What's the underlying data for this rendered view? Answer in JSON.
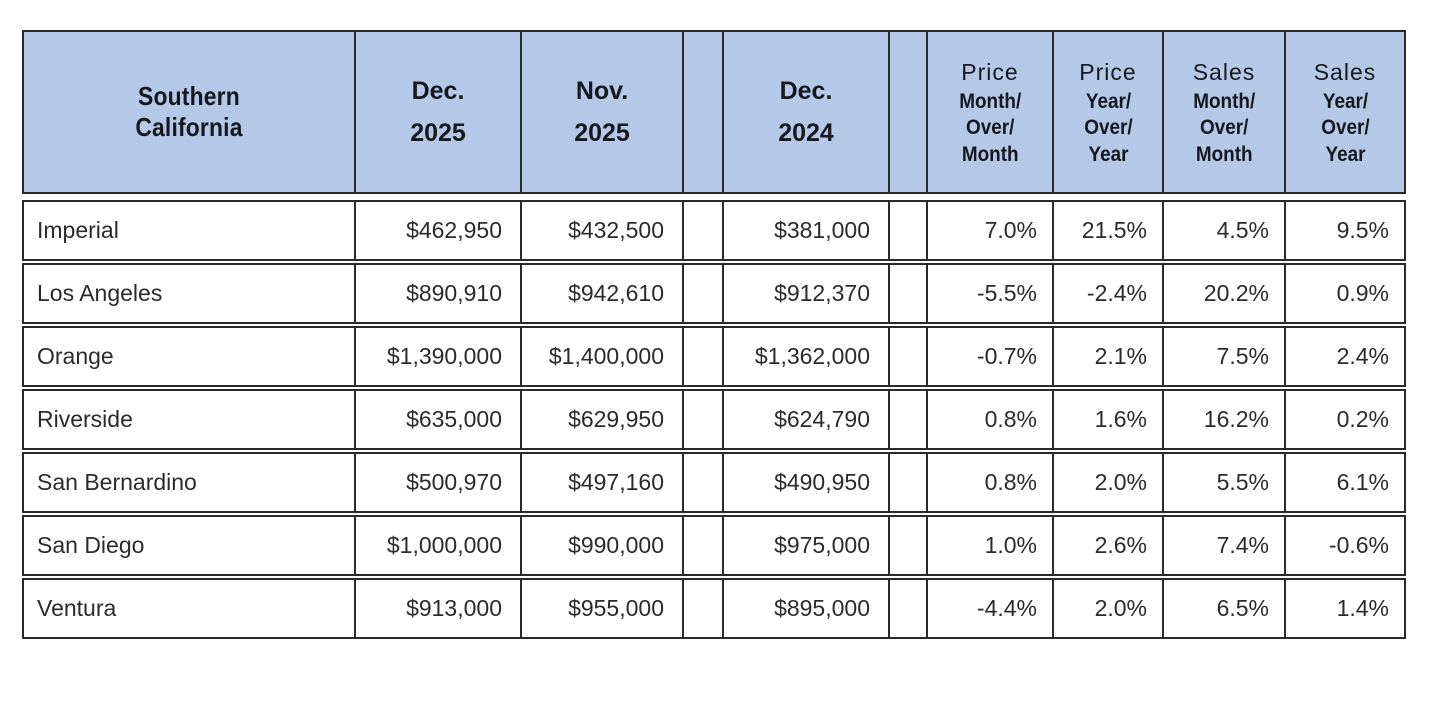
{
  "chart_data": {
    "type": "table",
    "title": "Southern California",
    "columns": [
      "Southern California",
      "Dec. 2025",
      "Nov. 2025",
      "Dec. 2024",
      "Price Month/Over/Month",
      "Price Year/Over/Year",
      "Sales Month/Over/Month",
      "Sales Year/Over/Year"
    ],
    "rows": [
      [
        "Imperial",
        "$462,950",
        "$432,500",
        "$381,000",
        "7.0%",
        "21.5%",
        "4.5%",
        "9.5%"
      ],
      [
        "Los Angeles",
        "$890,910",
        "$942,610",
        "$912,370",
        "-5.5%",
        "-2.4%",
        "20.2%",
        "0.9%"
      ],
      [
        "Orange",
        "$1,390,000",
        "$1,400,000",
        "$1,362,000",
        "-0.7%",
        "2.1%",
        "7.5%",
        "2.4%"
      ],
      [
        "Riverside",
        "$635,000",
        "$629,950",
        "$624,790",
        "0.8%",
        "1.6%",
        "16.2%",
        "0.2%"
      ],
      [
        "San Bernardino",
        "$500,970",
        "$497,160",
        "$490,950",
        "0.8%",
        "2.0%",
        "5.5%",
        "6.1%"
      ],
      [
        "San Diego",
        "$1,000,000",
        "$990,000",
        "$975,000",
        "1.0%",
        "2.6%",
        "7.4%",
        "-0.6%"
      ],
      [
        "Ventura",
        "$913,000",
        "$955,000",
        "$895,000",
        "-4.4%",
        "2.0%",
        "6.5%",
        "1.4%"
      ]
    ]
  },
  "header": {
    "region": {
      "line1": "Southern",
      "line2": "California"
    },
    "dec_2025": {
      "month": "Dec.",
      "year": "2025"
    },
    "nov_2025": {
      "month": "Nov.",
      "year": "2025"
    },
    "dec_2024": {
      "month": "Dec.",
      "year": "2024"
    },
    "price_mom": {
      "top": "Price",
      "sub1": "Month/",
      "sub2": "Over/",
      "sub3": "Month"
    },
    "price_yoy": {
      "top": "Price",
      "sub1": "Year/",
      "sub2": "Over/",
      "sub3": "Year"
    },
    "sales_mom": {
      "top": "Sales",
      "sub1": "Month/",
      "sub2": "Over/",
      "sub3": "Month"
    },
    "sales_yoy": {
      "top": "Sales",
      "sub1": "Year/",
      "sub2": "Over/",
      "sub3": "Year"
    }
  },
  "rows": [
    {
      "county": "Imperial",
      "dec_2025": "$462,950",
      "nov_2025": "$432,500",
      "dec_2024": "$381,000",
      "price_mom": "7.0%",
      "price_yoy": "21.5%",
      "sales_mom": "4.5%",
      "sales_yoy": "9.5%"
    },
    {
      "county": "Los Angeles",
      "dec_2025": "$890,910",
      "nov_2025": "$942,610",
      "dec_2024": "$912,370",
      "price_mom": "-5.5%",
      "price_yoy": "-2.4%",
      "sales_mom": "20.2%",
      "sales_yoy": "0.9%"
    },
    {
      "county": "Orange",
      "dec_2025": "$1,390,000",
      "nov_2025": "$1,400,000",
      "dec_2024": "$1,362,000",
      "price_mom": "-0.7%",
      "price_yoy": "2.1%",
      "sales_mom": "7.5%",
      "sales_yoy": "2.4%"
    },
    {
      "county": "Riverside",
      "dec_2025": "$635,000",
      "nov_2025": "$629,950",
      "dec_2024": "$624,790",
      "price_mom": "0.8%",
      "price_yoy": "1.6%",
      "sales_mom": "16.2%",
      "sales_yoy": "0.2%"
    },
    {
      "county": "San Bernardino",
      "dec_2025": "$500,970",
      "nov_2025": "$497,160",
      "dec_2024": "$490,950",
      "price_mom": "0.8%",
      "price_yoy": "2.0%",
      "sales_mom": "5.5%",
      "sales_yoy": "6.1%"
    },
    {
      "county": "San Diego",
      "dec_2025": "$1,000,000",
      "nov_2025": "$990,000",
      "dec_2024": "$975,000",
      "price_mom": "1.0%",
      "price_yoy": "2.6%",
      "sales_mom": "7.4%",
      "sales_yoy": "-0.6%"
    },
    {
      "county": "Ventura",
      "dec_2025": "$913,000",
      "nov_2025": "$955,000",
      "dec_2024": "$895,000",
      "price_mom": "-4.4%",
      "price_yoy": "2.0%",
      "sales_mom": "6.5%",
      "sales_yoy": "1.4%"
    }
  ],
  "colors": {
    "header_bg": "#b6c8e8",
    "border": "#2a2a2a",
    "text": "#2b2b2b"
  }
}
